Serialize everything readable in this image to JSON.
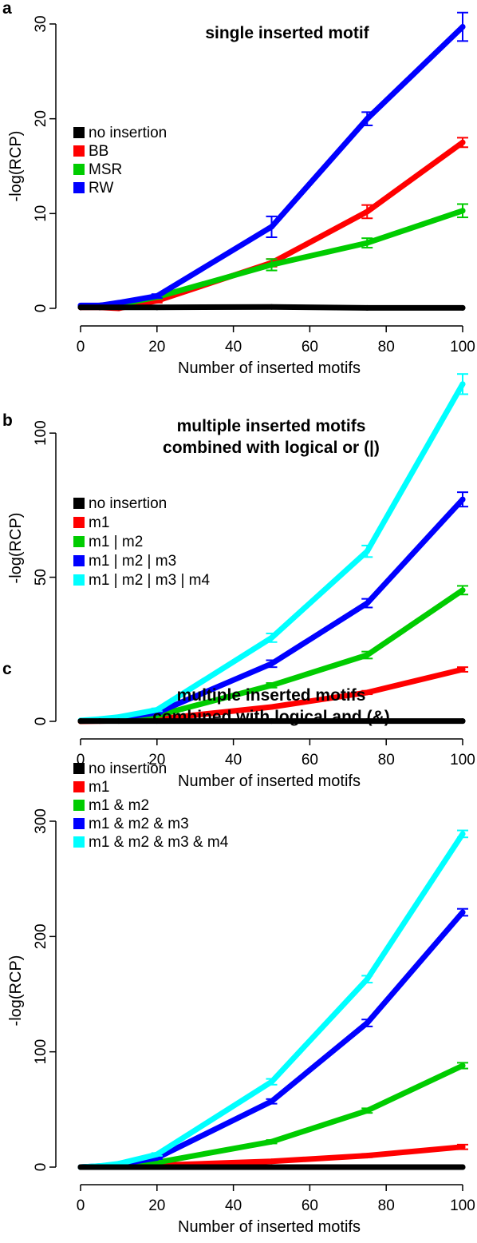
{
  "chart_data": [
    {
      "type": "line",
      "panel_label": "a",
      "title": [
        "single inserted motif"
      ],
      "xlabel": "Number of inserted motifs",
      "ylabel": "-log(RCP)",
      "xlim": [
        0,
        100
      ],
      "ylim": [
        0,
        30
      ],
      "xticks": [
        0,
        20,
        40,
        60,
        80,
        100
      ],
      "yticks": [
        0,
        10,
        20,
        30
      ],
      "legend_position": "left",
      "x": [
        0,
        5,
        10,
        20,
        50,
        75,
        100
      ],
      "series": [
        {
          "name": "no insertion",
          "color": "#000000",
          "values": [
            0.1,
            0.1,
            0.1,
            0.1,
            0.15,
            0.05,
            0.05
          ],
          "errors": [
            0,
            0,
            0,
            0,
            0,
            0,
            0
          ]
        },
        {
          "name": "BB",
          "color": "#ff0000",
          "values": [
            0.1,
            0.1,
            0.0,
            0.8,
            4.8,
            10.2,
            17.5
          ],
          "errors": [
            0.1,
            0.1,
            0.1,
            0.2,
            0.4,
            0.7,
            0.5
          ]
        },
        {
          "name": "MSR",
          "color": "#00cc00",
          "values": [
            0.2,
            0.3,
            0.4,
            1.2,
            4.6,
            6.9,
            10.3
          ],
          "errors": [
            0.1,
            0.1,
            0.1,
            0.2,
            0.6,
            0.5,
            0.7
          ]
        },
        {
          "name": "RW",
          "color": "#0000ff",
          "values": [
            0.3,
            0.3,
            0.6,
            1.3,
            8.6,
            20.0,
            29.7
          ],
          "errors": [
            0.1,
            0.1,
            0.2,
            0.2,
            1.1,
            0.7,
            1.5
          ]
        }
      ]
    },
    {
      "type": "line",
      "panel_label": "b",
      "title": [
        "multiple inserted motifs",
        "combined with logical or (|)"
      ],
      "xlabel": "Number of inserted motifs",
      "ylabel": "-log(RCP)",
      "xlim": [
        0,
        100
      ],
      "ylim": [
        0,
        120
      ],
      "xticks": [
        0,
        20,
        40,
        60,
        80,
        100
      ],
      "yticks": [
        0,
        50,
        100
      ],
      "legend_position": "left",
      "x": [
        0,
        5,
        10,
        20,
        50,
        75,
        100
      ],
      "series": [
        {
          "name": "no insertion",
          "color": "#000000",
          "values": [
            0.1,
            0.1,
            0.1,
            0.1,
            0.1,
            0.1,
            0.1
          ],
          "errors": [
            0,
            0,
            0,
            0,
            0,
            0,
            0
          ]
        },
        {
          "name": "m1",
          "color": "#ff0000",
          "values": [
            0,
            0.1,
            0.2,
            0.8,
            5,
            10,
            18
          ],
          "errors": [
            0.1,
            0.1,
            0.1,
            0.2,
            0.4,
            0.6,
            0.8
          ]
        },
        {
          "name": "m1 | m2",
          "color": "#00cc00",
          "values": [
            0.1,
            0.3,
            0.6,
            2,
            12.5,
            23,
            45.5
          ],
          "errors": [
            0.1,
            0.1,
            0.2,
            0.3,
            0.8,
            1.2,
            1.5
          ]
        },
        {
          "name": "m1 | m2 | m3",
          "color": "#0000ff",
          "values": [
            0.2,
            0.6,
            1.2,
            3,
            20,
            41,
            77
          ],
          "errors": [
            0.1,
            0.2,
            0.2,
            0.4,
            1.2,
            1.5,
            2.5
          ]
        },
        {
          "name": "m1 | m2 | m3 | m4",
          "color": "#00ffff",
          "values": [
            0.3,
            0.8,
            1.5,
            4,
            29,
            59,
            117
          ],
          "errors": [
            0.1,
            0.2,
            0.3,
            0.5,
            1.5,
            2,
            3.5
          ]
        }
      ]
    },
    {
      "type": "line",
      "panel_label": "c",
      "title": [
        "multiple inserted motifs",
        "combined with logical and (&)"
      ],
      "xlabel": "Number of inserted motifs",
      "ylabel": "-log(RCP)",
      "xlim": [
        0,
        100
      ],
      "ylim": [
        0,
        300
      ],
      "xticks": [
        0,
        20,
        40,
        60,
        80,
        100
      ],
      "yticks": [
        0,
        100,
        200,
        300
      ],
      "legend_position": "left",
      "x": [
        0,
        5,
        10,
        20,
        50,
        75,
        100
      ],
      "series": [
        {
          "name": "no insertion",
          "color": "#000000",
          "values": [
            0,
            0,
            0,
            0,
            0,
            0,
            0
          ],
          "errors": [
            0,
            0,
            0,
            0,
            0,
            0,
            0
          ]
        },
        {
          "name": "m1",
          "color": "#ff0000",
          "values": [
            0,
            0.2,
            0.5,
            1.5,
            5,
            10,
            17.5
          ],
          "errors": [
            0.2,
            0.2,
            0.3,
            0.5,
            1,
            1.5,
            2
          ]
        },
        {
          "name": "m1 & m2",
          "color": "#00cc00",
          "values": [
            0,
            0.5,
            1.5,
            4,
            22,
            49,
            88
          ],
          "errors": [
            0.2,
            0.3,
            0.5,
            0.8,
            1.5,
            2,
            2.5
          ]
        },
        {
          "name": "m1 & m2 & m3",
          "color": "#0000ff",
          "values": [
            0,
            0.8,
            2.5,
            8,
            57,
            125,
            221
          ],
          "errors": [
            0.2,
            0.3,
            0.5,
            1,
            2,
            3,
            3
          ]
        },
        {
          "name": "m1 & m2 & m3 & m4",
          "color": "#00ffff",
          "values": [
            0,
            1,
            3,
            11,
            74,
            163,
            289
          ],
          "errors": [
            0.2,
            0.3,
            0.6,
            1.2,
            2.5,
            3,
            3
          ]
        }
      ]
    }
  ]
}
